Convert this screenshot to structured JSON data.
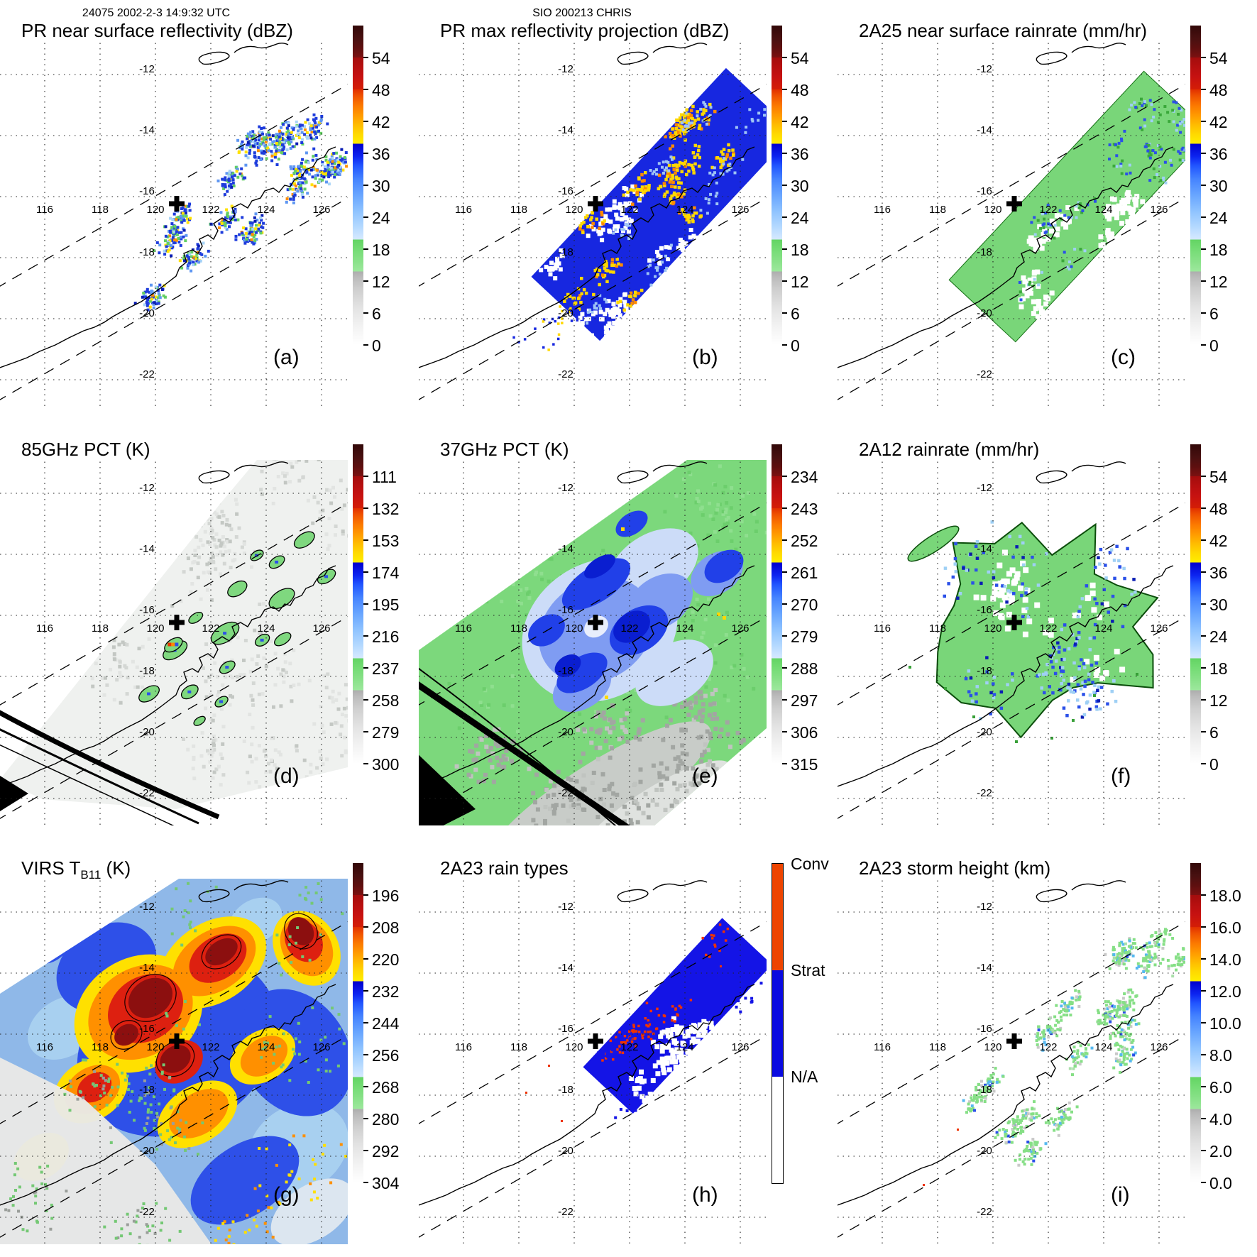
{
  "header": {
    "left": "24075 2002-2-3 14:9:32 UTC",
    "center": "SIO 200213 CHRIS"
  },
  "geo": {
    "lon_labels": [
      "116",
      "118",
      "120",
      "122",
      "124",
      "126"
    ],
    "lat_labels": [
      "-12",
      "-14",
      "-16",
      "-18",
      "-20",
      "-22"
    ]
  },
  "palette_stops": [
    [
      0,
      "#ffffff"
    ],
    [
      6,
      "#f2f2f2"
    ],
    [
      12,
      "#e2e2e2"
    ],
    [
      17,
      "#d0d0d0"
    ],
    [
      21,
      "#bcbcbc"
    ],
    [
      23,
      "#adadad"
    ],
    [
      23,
      "#9de89d"
    ],
    [
      27,
      "#85e085"
    ],
    [
      30,
      "#74dc74"
    ],
    [
      33,
      "#63d463"
    ],
    [
      33,
      "#d6e9ff"
    ],
    [
      37,
      "#b4d9ff"
    ],
    [
      42,
      "#8ec2ff"
    ],
    [
      47,
      "#68a5ff"
    ],
    [
      52,
      "#4583ff"
    ],
    [
      56,
      "#2257ff"
    ],
    [
      59,
      "#0c24f0"
    ],
    [
      63,
      "#0000cd"
    ],
    [
      63,
      "#ffee00"
    ],
    [
      66,
      "#ffd900"
    ],
    [
      69,
      "#ffbb00"
    ],
    [
      72,
      "#ff9900"
    ],
    [
      75,
      "#fb7800"
    ],
    [
      78,
      "#ef5200"
    ],
    [
      80,
      "#e13000"
    ],
    [
      80,
      "#d41e06"
    ],
    [
      84,
      "#c61111"
    ],
    [
      87,
      "#b60f0f"
    ],
    [
      90,
      "#a30d0d"
    ],
    [
      90,
      "#7c1111"
    ],
    [
      93,
      "#5e0f0f"
    ],
    [
      96,
      "#481010"
    ],
    [
      100,
      "#320808"
    ]
  ],
  "raintype": {
    "labels": [
      "Conv",
      "Strat",
      "N/A"
    ],
    "colors": [
      "#ee4400",
      "#0a0ae0",
      "#ffffff"
    ]
  },
  "chart_data": [
    {
      "type": "heatmap",
      "panel": "a",
      "title": "PR near surface reflectivity (dBZ)",
      "colorbar_ticks": [
        54,
        48,
        42,
        36,
        30,
        24,
        18,
        12,
        6,
        0
      ],
      "units": "dBZ",
      "lon_range": [
        114,
        127
      ],
      "lat_range": [
        -23,
        -11
      ]
    },
    {
      "type": "heatmap",
      "panel": "b",
      "title": "PR max reflectivity projection (dBZ)",
      "colorbar_ticks": [
        54,
        48,
        42,
        36,
        30,
        24,
        18,
        12,
        6,
        0
      ],
      "units": "dBZ"
    },
    {
      "type": "heatmap",
      "panel": "c",
      "title": "2A25 near surface rainrate (mm/hr)",
      "colorbar_ticks": [
        54,
        48,
        42,
        36,
        30,
        24,
        18,
        12,
        6,
        0
      ],
      "units": "mm/hr"
    },
    {
      "type": "heatmap",
      "panel": "d",
      "title": "85GHz PCT (K)",
      "colorbar_ticks": [
        111,
        132,
        153,
        174,
        195,
        216,
        237,
        258,
        279,
        300
      ],
      "units": "K"
    },
    {
      "type": "heatmap",
      "panel": "e",
      "title": "37GHz PCT (K)",
      "colorbar_ticks": [
        234,
        243,
        252,
        261,
        270,
        279,
        288,
        297,
        306,
        315
      ],
      "units": "K"
    },
    {
      "type": "heatmap",
      "panel": "f",
      "title": "2A12 rainrate (mm/hr)",
      "colorbar_ticks": [
        54,
        48,
        42,
        36,
        30,
        24,
        18,
        12,
        6,
        0
      ],
      "units": "mm/hr"
    },
    {
      "type": "heatmap",
      "panel": "g",
      "title": "VIRS TB11 (K)",
      "colorbar_ticks": [
        196,
        208,
        220,
        232,
        244,
        256,
        268,
        280,
        292,
        304
      ],
      "units": "K"
    },
    {
      "type": "heatmap",
      "panel": "h",
      "title": "2A23 rain types",
      "colorbar_ticks": [
        "Conv",
        "Strat",
        "N/A"
      ],
      "units": "category"
    },
    {
      "type": "heatmap",
      "panel": "i",
      "title": "2A23 storm height (km)",
      "colorbar_ticks": [
        18.0,
        16.0,
        14.0,
        12.0,
        10.0,
        8.0,
        6.0,
        4.0,
        2.0,
        0.0
      ],
      "units": "km"
    }
  ],
  "panels": [
    {
      "id": "a",
      "letter": "(a)",
      "title": "PR near surface reflectivity (dBZ)",
      "map_type": "pr_refl",
      "colorbar_labels": [
        "54",
        "48",
        "42",
        "36",
        "30",
        "24",
        "18",
        "12",
        "6",
        "0"
      ]
    },
    {
      "id": "b",
      "letter": "(b)",
      "title": "PR max reflectivity projection (dBZ)",
      "map_type": "pr_max",
      "colorbar_labels": [
        "54",
        "48",
        "42",
        "36",
        "30",
        "24",
        "18",
        "12",
        "6",
        "0"
      ]
    },
    {
      "id": "c",
      "letter": "(c)",
      "title": "2A25 near surface rainrate (mm/hr)",
      "map_type": "rain_swath",
      "colorbar_labels": [
        "54",
        "48",
        "42",
        "36",
        "30",
        "24",
        "18",
        "12",
        "6",
        "0"
      ]
    },
    {
      "id": "d",
      "letter": "(d)",
      "title": "85GHz PCT (K)",
      "map_type": "pct85",
      "colorbar_labels": [
        "111",
        "132",
        "153",
        "174",
        "195",
        "216",
        "237",
        "258",
        "279",
        "300"
      ]
    },
    {
      "id": "e",
      "letter": "(e)",
      "title": "37GHz PCT (K)",
      "map_type": "pct37",
      "colorbar_labels": [
        "234",
        "243",
        "252",
        "261",
        "270",
        "279",
        "288",
        "297",
        "306",
        "315"
      ]
    },
    {
      "id": "f",
      "letter": "(f)",
      "title": "2A12 rainrate (mm/hr)",
      "map_type": "tmi_rain",
      "colorbar_labels": [
        "54",
        "48",
        "42",
        "36",
        "30",
        "24",
        "18",
        "12",
        "6",
        "0"
      ]
    },
    {
      "id": "g",
      "letter": "(g)",
      "title_pre": "VIRS T",
      "title_sub": "B11",
      "title_post": " (K)",
      "map_type": "virs",
      "colorbar_labels": [
        "196",
        "208",
        "220",
        "232",
        "244",
        "256",
        "268",
        "280",
        "292",
        "304"
      ]
    },
    {
      "id": "h",
      "letter": "(h)",
      "title": "2A23 rain types",
      "map_type": "raintypes",
      "colorbar_type": "raintype"
    },
    {
      "id": "i",
      "letter": "(i)",
      "title": "2A23 storm height (km)",
      "map_type": "storm_height",
      "colorbar_labels": [
        "18.0",
        "16.0",
        "14.0",
        "12.0",
        "10.0",
        "8.0",
        "6.0",
        "4.0",
        "2.0",
        "0.0"
      ]
    }
  ]
}
